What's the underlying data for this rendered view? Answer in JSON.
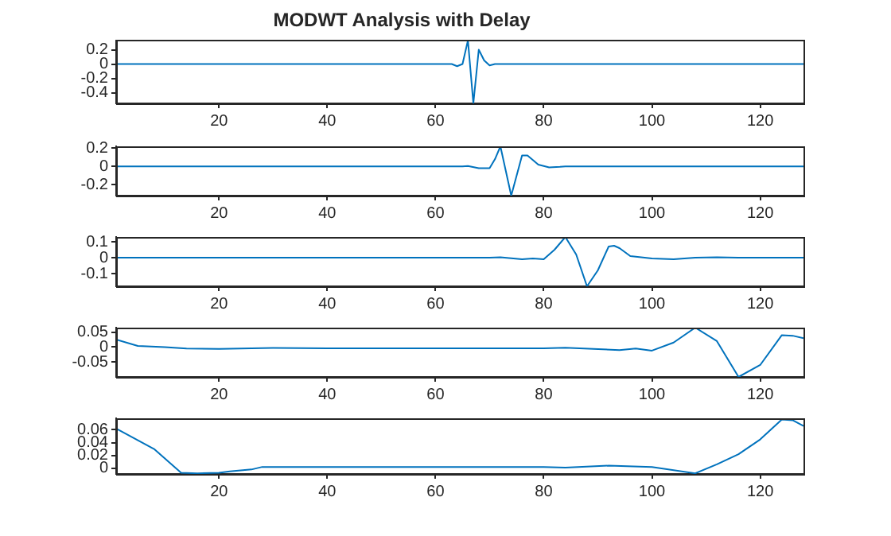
{
  "chart_data": [
    {
      "type": "line",
      "title": "MODWT Analysis with Delay",
      "x": [
        1,
        20,
        40,
        60,
        63,
        64,
        65,
        66,
        67,
        68,
        69,
        70,
        71,
        72,
        80,
        100,
        128
      ],
      "series": [
        {
          "color": "#0072bd",
          "values": [
            0,
            0,
            0,
            0,
            0,
            -0.03,
            0,
            0.33,
            -0.55,
            0.2,
            0.05,
            -0.02,
            0,
            0,
            0,
            0,
            0
          ]
        }
      ],
      "xlim": [
        1,
        128
      ],
      "xticks": [
        20,
        40,
        60,
        80,
        100,
        120
      ],
      "ylim": [
        -0.55,
        0.33
      ],
      "yticks": [
        -0.4,
        -0.2,
        0,
        0.2
      ],
      "grid": false,
      "legend": false
    },
    {
      "type": "line",
      "x": [
        1,
        20,
        40,
        60,
        65,
        66,
        68,
        70,
        71,
        72,
        74,
        76,
        77,
        79,
        81,
        83,
        84,
        100,
        128
      ],
      "series": [
        {
          "color": "#0072bd",
          "values": [
            0,
            0,
            0,
            0,
            0,
            0.005,
            -0.02,
            -0.02,
            0.08,
            0.22,
            -0.32,
            0.12,
            0.12,
            0.02,
            -0.01,
            -0.005,
            0,
            0,
            0
          ]
        }
      ],
      "xlim": [
        1,
        128
      ],
      "xticks": [
        20,
        40,
        60,
        80,
        100,
        120
      ],
      "ylim": [
        -0.32,
        0.22
      ],
      "yticks": [
        -0.2,
        0,
        0.2
      ],
      "grid": false,
      "legend": false
    },
    {
      "type": "line",
      "x": [
        1,
        20,
        40,
        60,
        70,
        72,
        76,
        78,
        80,
        82,
        84,
        86,
        88,
        90,
        92,
        93,
        94,
        96,
        100,
        104,
        108,
        112,
        116,
        128
      ],
      "series": [
        {
          "color": "#0072bd",
          "values": [
            0,
            0,
            0,
            0,
            0,
            0.003,
            -0.01,
            -0.005,
            -0.01,
            0.05,
            0.13,
            0.02,
            -0.18,
            -0.08,
            0.07,
            0.075,
            0.06,
            0.01,
            -0.005,
            -0.01,
            0,
            0.002,
            0,
            0
          ]
        }
      ],
      "xlim": [
        1,
        128
      ],
      "xticks": [
        20,
        40,
        60,
        80,
        100,
        120
      ],
      "ylim": [
        -0.18,
        0.13
      ],
      "yticks": [
        -0.1,
        0,
        0.1
      ],
      "grid": false,
      "legend": false
    },
    {
      "type": "line",
      "x": [
        1,
        5,
        10,
        14,
        20,
        30,
        40,
        60,
        80,
        84,
        94,
        97,
        100,
        104,
        108,
        112,
        116,
        120,
        124,
        126,
        128
      ],
      "series": [
        {
          "color": "#0072bd",
          "values": [
            0.025,
            0.004,
            0,
            -0.005,
            -0.006,
            -0.003,
            -0.004,
            -0.004,
            -0.004,
            -0.002,
            -0.01,
            -0.005,
            -0.012,
            0.015,
            0.065,
            0.02,
            -0.1,
            -0.06,
            0.04,
            0.038,
            0.03
          ]
        }
      ],
      "xlim": [
        1,
        128
      ],
      "xticks": [
        20,
        40,
        60,
        80,
        100,
        120
      ],
      "ylim": [
        -0.1,
        0.065
      ],
      "yticks": [
        -0.05,
        0,
        0.05
      ],
      "grid": false,
      "legend": false
    },
    {
      "type": "line",
      "x": [
        1,
        8,
        13,
        16,
        20,
        22,
        26,
        28,
        40,
        60,
        80,
        84,
        92,
        100,
        108,
        112,
        116,
        120,
        124,
        126,
        128
      ],
      "series": [
        {
          "color": "#0072bd",
          "values": [
            0.062,
            0.03,
            -0.007,
            -0.008,
            -0.007,
            -0.005,
            -0.002,
            0.002,
            0.002,
            0.002,
            0.002,
            0.001,
            0.004,
            0.002,
            -0.008,
            0.006,
            0.022,
            0.045,
            0.076,
            0.075,
            0.066
          ]
        }
      ],
      "xlim": [
        1,
        128
      ],
      "xticks": [
        20,
        40,
        60,
        80,
        100,
        120
      ],
      "ylim": [
        -0.009,
        0.078
      ],
      "yticks": [
        0,
        0.02,
        0.04,
        0.06
      ],
      "grid": false,
      "legend": false
    }
  ]
}
